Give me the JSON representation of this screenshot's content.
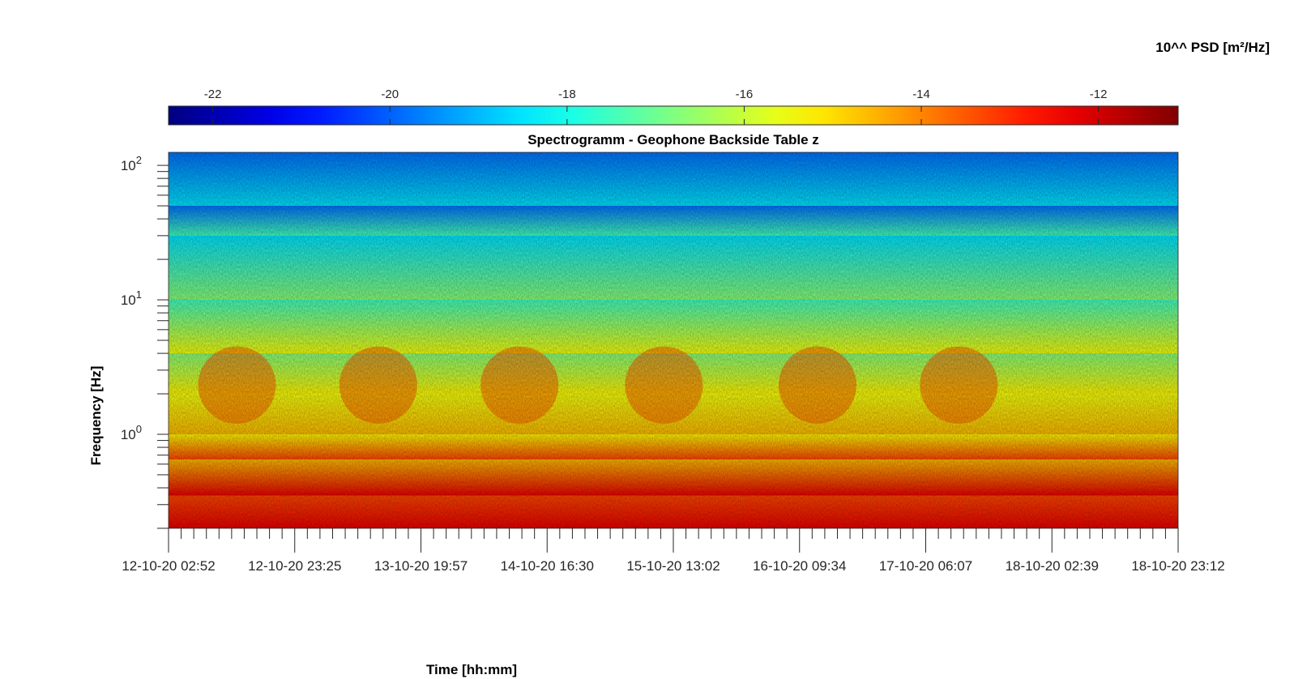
{
  "chart_data": {
    "type": "heatmap",
    "title": "Spectrogramm - Geophone Backside Table z",
    "xlabel": "Time [hh:mm]",
    "ylabel": "Frequency [Hz]",
    "x_tick_labels": [
      "12-10-20 02:52",
      "12-10-20 23:25",
      "13-10-20 19:57",
      "14-10-20 16:30",
      "15-10-20 13:02",
      "16-10-20 09:34",
      "17-10-20 06:07",
      "18-10-20 02:39",
      "18-10-20 23:12"
    ],
    "xlim": [
      "12-10-20 02:52",
      "18-10-20 23:12"
    ],
    "y_scale": "log",
    "ylim": [
      0.2,
      125
    ],
    "y_ticks": [
      {
        "base": "10",
        "exp": "2",
        "value": 100
      },
      {
        "base": "10",
        "exp": "1",
        "value": 10
      },
      {
        "base": "10",
        "exp": "0",
        "value": 1
      }
    ],
    "colorbar": {
      "label": "10^^ PSD [m²/Hz]",
      "colormap": "jet",
      "range": [
        -22.5,
        -11.1
      ],
      "ticks": [
        "-22",
        "-20",
        "-18",
        "-16",
        "-14",
        "-12"
      ],
      "tick_values": [
        -22,
        -20,
        -18,
        -16,
        -14,
        -12
      ],
      "placement": "top"
    },
    "color_structure": [
      {
        "freq_range_hz": [
          50,
          125
        ],
        "log_psd": -19.8
      },
      {
        "freq_range_hz": [
          30,
          50
        ],
        "log_psd": -18.5
      },
      {
        "freq_range_hz": [
          10,
          30
        ],
        "log_psd": -17.5
      },
      {
        "freq_range_hz": [
          4,
          10
        ],
        "log_psd": -16.7
      },
      {
        "freq_range_hz": [
          2,
          4
        ],
        "log_psd": -15.5
      },
      {
        "freq_range_hz": [
          1,
          2
        ],
        "log_psd": -15.3
      },
      {
        "freq_range_hz": [
          0.65,
          1
        ],
        "log_psd": -14.6
      },
      {
        "freq_range_hz": [
          0.35,
          0.65
        ],
        "log_psd": -13.3
      },
      {
        "freq_range_hz": [
          0.2,
          0.35
        ],
        "log_psd": -12.3
      }
    ],
    "daytime_activity_times": [
      "12-10-20 14:00",
      "13-10-20 13:00",
      "14-10-20 12:00",
      "15-10-20 11:30",
      "16-10-20 12:30",
      "17-10-20 11:30"
    ],
    "daytime_activity": {
      "freq_range_hz": [
        1.2,
        4.5
      ],
      "log_psd": -13.6
    }
  }
}
